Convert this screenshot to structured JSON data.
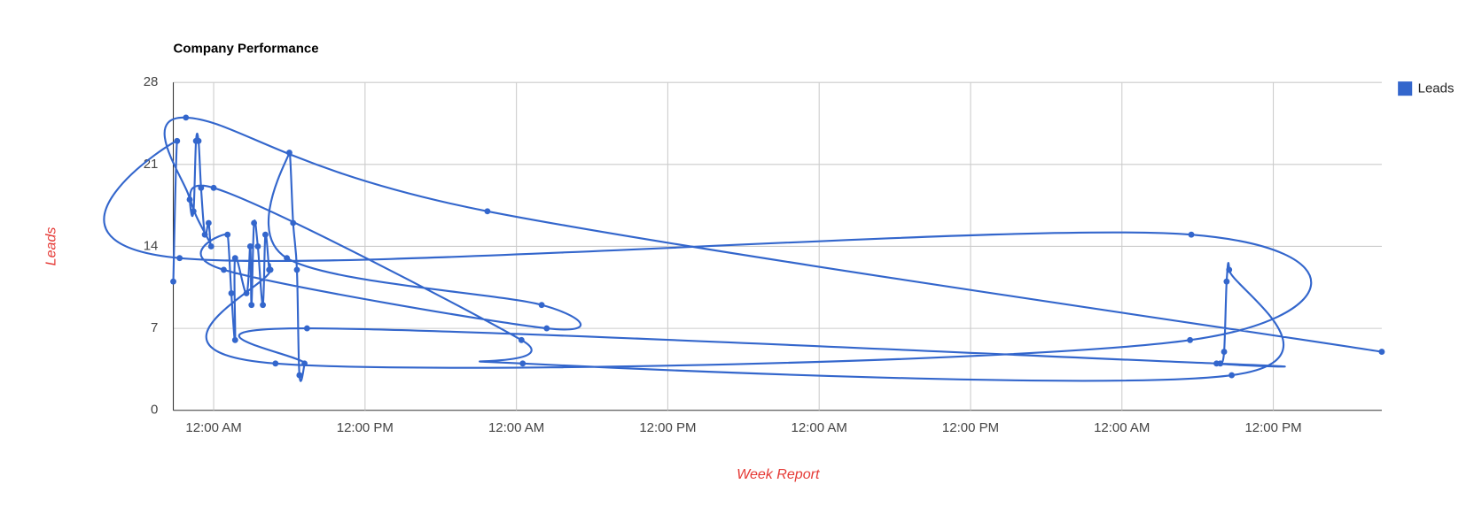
{
  "chart_data": {
    "type": "line",
    "title": "Company Performance",
    "x_label": "Week Report",
    "y_label": "Leads",
    "x": [
      -3.2,
      -2.9,
      -2.7,
      77.5,
      77.4,
      4.9,
      4.5,
      4.4,
      4.1,
      3.9,
      3.5,
      3.2,
      3.0,
      2.9,
      2.6,
      1.7,
      1.7,
      1.4,
      1.1,
      0.8,
      26.4,
      26.0,
      5.8,
      6.0,
      6.3,
      6.6,
      6.8,
      7.2,
      7.4,
      79.5,
      79.8,
      80.1,
      80.3,
      80.5,
      80.7,
      24.5,
      24.4,
      0.0,
      -0.2,
      -0.4,
      -0.7,
      -1.0,
      -1.2,
      -1.4,
      -1.6,
      -1.9,
      -2.2,
      21.7,
      92.6
    ],
    "series": [
      {
        "name": "Leads",
        "color": "#3366cc",
        "values": [
          11,
          23,
          13,
          15,
          6,
          4,
          12,
          12,
          15,
          9,
          14,
          16,
          9,
          14,
          10,
          13,
          6,
          10,
          15,
          12,
          7,
          9,
          13,
          22,
          16,
          12,
          3,
          4,
          7,
          4,
          4,
          5,
          11,
          12,
          3,
          4,
          6,
          19,
          14,
          16,
          15,
          19,
          23,
          23,
          17,
          18,
          25,
          17,
          5
        ]
      }
    ],
    "xlim": [
      -3.2,
      92.6
    ],
    "xticks": [
      {
        "value": 0,
        "label": "12:00 AM"
      },
      {
        "value": 12,
        "label": "12:00 PM"
      },
      {
        "value": 24,
        "label": "12:00 AM"
      },
      {
        "value": 36,
        "label": "12:00 PM"
      },
      {
        "value": 48,
        "label": "12:00 AM"
      },
      {
        "value": 60,
        "label": "12:00 PM"
      },
      {
        "value": 72,
        "label": "12:00 AM"
      },
      {
        "value": 84,
        "label": "12:00 PM"
      }
    ],
    "ylim": [
      0,
      28
    ],
    "yticks": [
      0,
      7,
      14,
      21,
      28
    ],
    "grid": true,
    "legend": "right"
  }
}
